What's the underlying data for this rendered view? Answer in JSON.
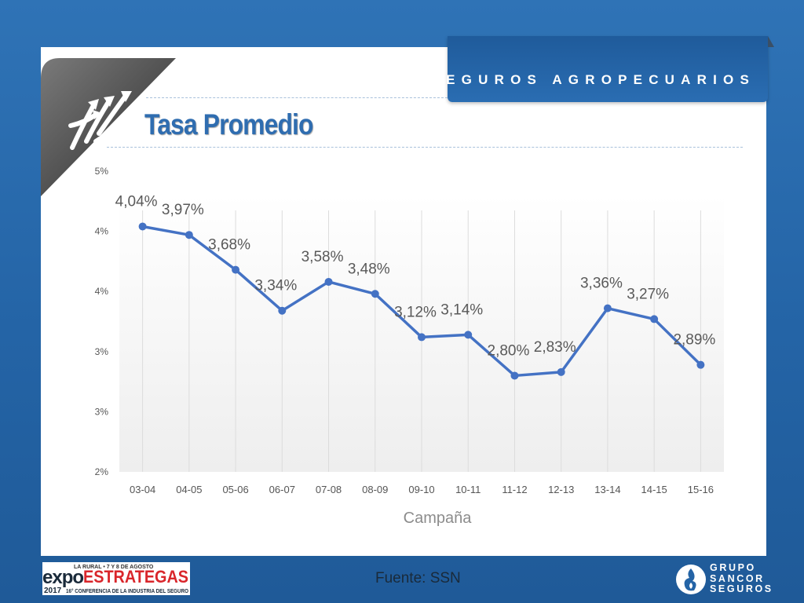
{
  "header": {
    "banner_text": "SEGUROS AGROPECUARIOS",
    "title": "Tasa Promedio"
  },
  "chart_data": {
    "type": "line",
    "categories": [
      "03-04",
      "04-05",
      "05-06",
      "06-07",
      "07-08",
      "08-09",
      "09-10",
      "10-11",
      "11-12",
      "12-13",
      "13-14",
      "14-15",
      "15-16"
    ],
    "series": [
      {
        "values": [
          4.04,
          3.97,
          3.68,
          3.34,
          3.58,
          3.48,
          3.12,
          3.14,
          2.8,
          2.83,
          3.36,
          3.27,
          2.89
        ]
      }
    ],
    "data_labels": [
      "4,04%",
      "3,97%",
      "3,68%",
      "3,34%",
      "3,58%",
      "3,48%",
      "3,12%",
      "3,14%",
      "2,80%",
      "2,83%",
      "3,36%",
      "3,27%",
      "2,89%"
    ],
    "y_tick_values": [
      2.0,
      2.5,
      3.0,
      3.5,
      4.0,
      4.5
    ],
    "y_tick_labels": [
      "2%",
      "3%",
      "3%",
      "4%",
      "4%",
      "5%"
    ],
    "ylim": [
      2.0,
      4.5
    ],
    "xlabel": "Campaña",
    "ylabel": "",
    "grid": "vertical",
    "legend": "none",
    "line_color": "#4472c4"
  },
  "footer": {
    "source": "Fuente: SSN",
    "expo_logo": {
      "top_line": "LA RURAL • 7 Y 8 DE AGOSTO",
      "word1": "expo",
      "word2": "ESTRATEGAS",
      "year": "2017",
      "subtitle": "16° CONFERENCIA DE LA INDUSTRIA DEL SEGURO"
    },
    "sancor_logo": {
      "line1": "GRUPO",
      "line2": "SANCOR",
      "line3": "SEGUROS"
    }
  },
  "colors": {
    "background": "#2a6bb0",
    "title": "#2f6db0",
    "line": "#4472c4",
    "banner": "#2563a6"
  }
}
